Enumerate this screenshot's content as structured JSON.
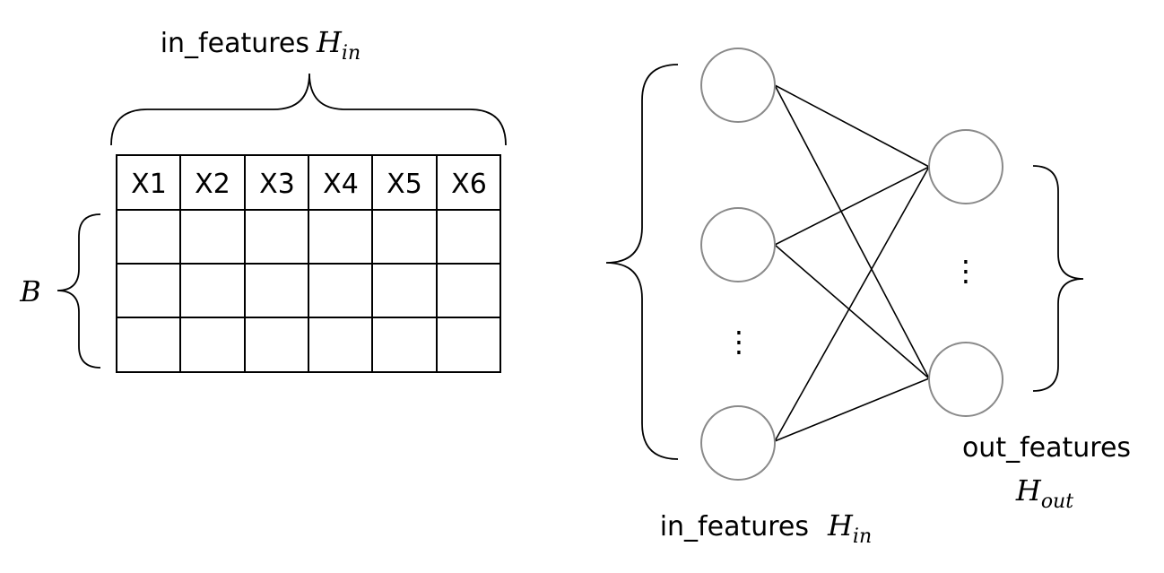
{
  "matrix": {
    "top_label": "in_features",
    "top_symbol": "H",
    "top_subscript": "in",
    "side_symbol": "B",
    "headers": [
      "X1",
      "X2",
      "X3",
      "X4",
      "X5",
      "X6"
    ],
    "data_rows": 3
  },
  "network": {
    "input_label": "in_features",
    "input_symbol": "H",
    "input_subscript": "in",
    "output_label": "out_features",
    "output_symbol": "H",
    "output_subscript": "out",
    "ellipsis": "⋮"
  },
  "colors": {
    "line": "#000000",
    "node_stroke": "#8a8a8a"
  }
}
